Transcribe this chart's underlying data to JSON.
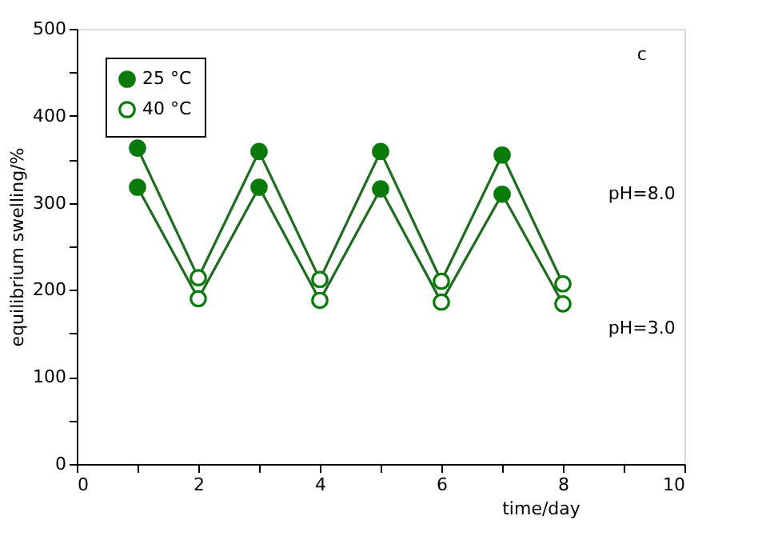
{
  "chart_data": {
    "type": "line",
    "xlabel": "time/day",
    "ylabel": "equilibrium swelling/%",
    "xlim": [
      0,
      10
    ],
    "ylim": [
      0,
      500
    ],
    "xticks": [
      0,
      {
        "value": 1,
        "label": null
      },
      2,
      {
        "value": 3,
        "label": null
      },
      4,
      {
        "value": 5,
        "label": null
      },
      6,
      {
        "value": 7,
        "label": null
      },
      8,
      {
        "value": 9,
        "label": null
      },
      10
    ],
    "yticks": [
      0,
      {
        "value": 50,
        "label": null
      },
      100,
      {
        "value": 150,
        "label": null
      },
      200,
      {
        "value": 250,
        "label": null
      },
      300,
      {
        "value": 350,
        "label": null
      },
      400,
      {
        "value": 450,
        "label": null
      },
      500
    ],
    "grid": false,
    "legend": "top left",
    "line_style": "solid",
    "annotations": [
      "c",
      "pH=8.0",
      "pH=3.0"
    ],
    "series": [
      {
        "color": "#1f6b1f",
        "x": [
          1,
          2,
          3,
          4,
          5,
          6,
          7,
          8
        ],
        "values": [
          363,
          214,
          359,
          212,
          359,
          210,
          355,
          207
        ]
      },
      {
        "color": "#1f6b1f",
        "x": [
          1,
          2,
          3,
          4,
          5,
          6,
          7,
          8
        ],
        "values": [
          318,
          190,
          318,
          188,
          316,
          186,
          310,
          184
        ]
      },
      {
        "name": "25 °C",
        "type": "scatter",
        "marker": "circle",
        "color": "#0a7a0a",
        "x": [
          1,
          1,
          3,
          3,
          5,
          5,
          7,
          7
        ],
        "values": [
          363,
          318,
          359,
          318,
          359,
          316,
          355,
          310
        ]
      },
      {
        "name": "40 °C",
        "type": "scatter",
        "marker": "circle_open",
        "color": "#0a7a0a",
        "x": [
          2,
          2,
          4,
          4,
          6,
          6,
          8,
          8
        ],
        "values": [
          214,
          190,
          212,
          188,
          210,
          186,
          207,
          184
        ]
      }
    ]
  }
}
